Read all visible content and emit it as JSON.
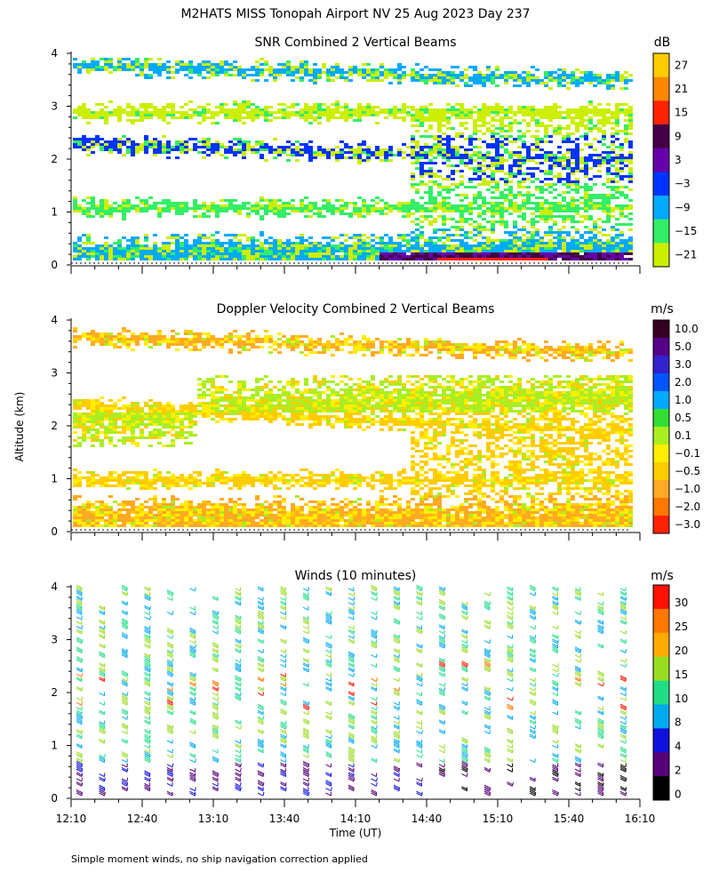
{
  "figure": {
    "title": "M2HATS MISS Tonopah Airport NV  25 Aug 2023 Day 237",
    "ylabel": "Altitude (km)",
    "xlabel": "Time (UT)",
    "footnote": "Simple moment winds, no ship navigation correction applied"
  },
  "chart_data": [
    {
      "type": "heatmap",
      "title": "SNR Combined 2 Vertical Beams",
      "ylabel": "Altitude (km)",
      "ylim": [
        0,
        4
      ],
      "y_ticks": [
        "0",
        "1",
        "2",
        "3",
        "4"
      ],
      "xlim": [
        "12:10",
        "16:10"
      ],
      "colorbar": {
        "unit": "dB",
        "levels": [
          "27",
          "21",
          "15",
          "9",
          "3",
          "−3",
          "−9",
          "−15",
          "−21"
        ],
        "colors": [
          "#ffcc00",
          "#ff8800",
          "#ff2200",
          "#440044",
          "#6600aa",
          "#0033ff",
          "#00aaff",
          "#33ee66",
          "#ccee00"
        ]
      },
      "features": [
        {
          "name": "top layer",
          "start_alt_km": 3.8,
          "end_alt_km": 3.5,
          "color": "#00aaff"
        },
        {
          "name": "upper band",
          "start_alt_km": 2.9,
          "end_alt_km": 2.9,
          "color": "#ccee00"
        },
        {
          "name": "blue layer",
          "start_alt_km": 2.3,
          "end_alt_km": 2.0,
          "color": "#0033ff"
        },
        {
          "name": "mid band",
          "start_alt_km": 1.1,
          "end_alt_km": 1.1,
          "color": "#33ee66"
        },
        {
          "name": "near surface",
          "start_alt_km": 0.3,
          "end_alt_km": 0.4,
          "color": "#00aaff"
        }
      ]
    },
    {
      "type": "heatmap",
      "title": "Doppler Velocity Combined 2 Vertical Beams",
      "ylabel": "Altitude (km)",
      "ylim": [
        0,
        4
      ],
      "y_ticks": [
        "0",
        "1",
        "2",
        "3",
        "4"
      ],
      "xlim": [
        "12:10",
        "16:10"
      ],
      "colorbar": {
        "unit": "m/s",
        "levels": [
          "10.0",
          "5.0",
          "3.0",
          "2.0",
          "1.0",
          "0.5",
          "0.1",
          "−0.1",
          "−0.5",
          "−1.0",
          "−2.0",
          "−3.0"
        ],
        "colors": [
          "#330022",
          "#550088",
          "#3322cc",
          "#0055ff",
          "#00aaff",
          "#33dd33",
          "#aaee22",
          "#ffee00",
          "#ffcc00",
          "#ffaa22",
          "#ff7700",
          "#ff2200"
        ]
      },
      "features": [
        {
          "name": "top layer",
          "start_alt_km": 3.7,
          "end_alt_km": 3.4,
          "color": "#ffaa22"
        },
        {
          "name": "mid layer",
          "start_alt_km": 2.4,
          "end_alt_km": 1.9,
          "color": "#ffcc00"
        },
        {
          "name": "right updraft",
          "start_alt_km": 2.2,
          "end_alt_km": 2.6,
          "color": "#aaee22"
        },
        {
          "name": "lower layer",
          "start_alt_km": 1.0,
          "end_alt_km": 1.0,
          "color": "#ffcc00"
        },
        {
          "name": "near surface",
          "start_alt_km": 0.4,
          "end_alt_km": 0.4,
          "color": "#ffaa22"
        }
      ]
    },
    {
      "type": "wind barbs",
      "title": "Winds (10 minutes)",
      "ylabel": "Altitude (km)",
      "ylim": [
        0,
        4
      ],
      "y_ticks": [
        "0",
        "1",
        "2",
        "3",
        "4"
      ],
      "x_ticks": [
        "12:10",
        "12:40",
        "13:10",
        "13:40",
        "14:10",
        "14:40",
        "15:10",
        "15:40",
        "16:10"
      ],
      "xlabel": "Time (UT)",
      "colorbar": {
        "unit": "m/s",
        "levels": [
          "30",
          "25",
          "20",
          "15",
          "10",
          "8",
          "4",
          "2",
          "0"
        ],
        "colors": [
          "#ff1100",
          "#ff7700",
          "#ffaa00",
          "#99dd22",
          "#22dd88",
          "#00aaee",
          "#1111dd",
          "#550077",
          "#000000"
        ]
      }
    }
  ]
}
